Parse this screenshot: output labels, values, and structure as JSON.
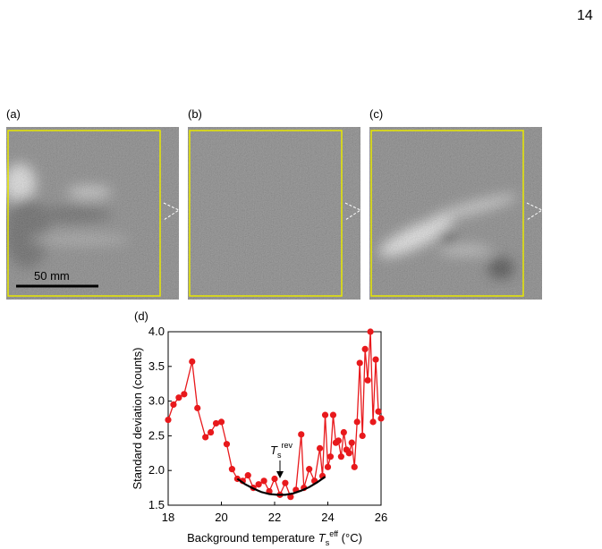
{
  "page_number": "14",
  "figure": {
    "panels": [
      {
        "label": "(a)"
      },
      {
        "label": "(b)"
      },
      {
        "label": "(c)"
      }
    ],
    "scale_bar": "50 mm"
  },
  "chart_data": {
    "type": "line",
    "label": "(d)",
    "ylabel": "Standard deviation (counts)",
    "xlabel": {
      "parts": [
        "Background temperature ",
        "T",
        "s",
        "eff",
        " (°C)"
      ]
    },
    "annotation": {
      "parts": [
        "T",
        "s",
        "rev"
      ]
    },
    "xlim": [
      18,
      26
    ],
    "ylim": [
      1.5,
      4.0
    ],
    "xticks": [
      18,
      20,
      22,
      24,
      26
    ],
    "yticks": [
      {
        "value": 1.5,
        "label": "1.5"
      },
      {
        "value": 2,
        "label": "2.0"
      },
      {
        "value": 2.5,
        "label": "2.5"
      },
      {
        "value": 3,
        "label": "3.0"
      },
      {
        "value": 3.5,
        "label": "3.5"
      },
      {
        "value": 4,
        "label": "4.0"
      }
    ],
    "series": [
      {
        "color": "#e8191c",
        "markers": true,
        "x": [
          18.0,
          18.2,
          18.4,
          18.6,
          18.9,
          19.1,
          19.4,
          19.6,
          19.8,
          20.0,
          20.2,
          20.4,
          20.6,
          20.8,
          21.0,
          21.2,
          21.4,
          21.6,
          21.8,
          22.0,
          22.2,
          22.4,
          22.6,
          22.8,
          23.0,
          23.1,
          23.3,
          23.5,
          23.7,
          23.8,
          23.9,
          24.0,
          24.1,
          24.2,
          24.3,
          24.4,
          24.5,
          24.6,
          24.7,
          24.8,
          24.9,
          25.0,
          25.1,
          25.2,
          25.3,
          25.4,
          25.5,
          25.6,
          25.7,
          25.8,
          25.9,
          26.0
        ],
        "values": [
          2.73,
          2.95,
          3.05,
          3.1,
          3.57,
          2.9,
          2.48,
          2.55,
          2.68,
          2.7,
          2.38,
          2.02,
          1.88,
          1.85,
          1.93,
          1.75,
          1.8,
          1.85,
          1.7,
          1.88,
          1.65,
          1.82,
          1.62,
          1.72,
          2.52,
          1.75,
          2.02,
          1.85,
          2.32,
          1.92,
          2.8,
          2.05,
          2.2,
          2.8,
          2.4,
          2.43,
          2.2,
          2.55,
          2.3,
          2.25,
          2.4,
          2.05,
          2.7,
          3.55,
          2.5,
          3.75,
          3.3,
          4.0,
          2.7,
          3.6,
          2.85,
          2.75
        ]
      },
      {
        "color": "#000000",
        "markers": false,
        "x": [
          20.6,
          20.9,
          21.2,
          21.5,
          21.8,
          22.1,
          22.4,
          22.7,
          23.0,
          23.3,
          23.6,
          23.9
        ],
        "values": [
          1.88,
          1.8,
          1.74,
          1.69,
          1.66,
          1.65,
          1.65,
          1.67,
          1.71,
          1.76,
          1.83,
          1.91
        ]
      }
    ]
  }
}
